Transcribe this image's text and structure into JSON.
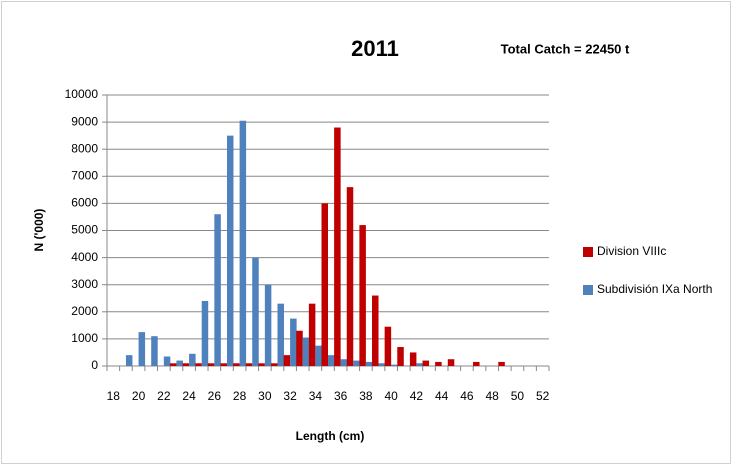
{
  "chart_data": {
    "type": "bar",
    "title": "2011",
    "subtitle": "Total Catch =  22450 t",
    "x_label": "Length (cm)",
    "y_label": "N ('000)",
    "categories": [
      18,
      null,
      20,
      null,
      22,
      null,
      24,
      null,
      26,
      null,
      28,
      null,
      30,
      null,
      32,
      null,
      34,
      null,
      36,
      null,
      38,
      null,
      40,
      null,
      42,
      null,
      44,
      null,
      46,
      null,
      48,
      null,
      50,
      null,
      52
    ],
    "series": [
      {
        "name": "Division VIIIc",
        "color": "#c00000",
        "values": [
          0,
          0,
          0,
          0,
          0,
          100,
          100,
          100,
          100,
          100,
          100,
          100,
          100,
          100,
          400,
          1300,
          2300,
          6000,
          8800,
          6600,
          5200,
          2600,
          1450,
          700,
          500,
          200,
          150,
          250,
          0,
          150,
          0,
          150,
          0,
          0,
          0
        ]
      },
      {
        "name": "Subdivisión IXa North",
        "color": "#4f81bd",
        "values": [
          0,
          400,
          1250,
          1100,
          350,
          200,
          450,
          2400,
          5600,
          8500,
          9050,
          4000,
          3000,
          2300,
          1750,
          1050,
          750,
          400,
          250,
          200,
          150,
          100,
          50,
          0,
          100,
          0,
          0,
          0,
          0,
          0,
          0,
          0,
          0,
          0,
          0
        ]
      }
    ],
    "ylim": [
      0,
      10000
    ],
    "yticks": [
      0,
      1000,
      2000,
      3000,
      4000,
      5000,
      6000,
      7000,
      8000,
      9000,
      10000
    ],
    "grid": true,
    "legend": "right"
  }
}
